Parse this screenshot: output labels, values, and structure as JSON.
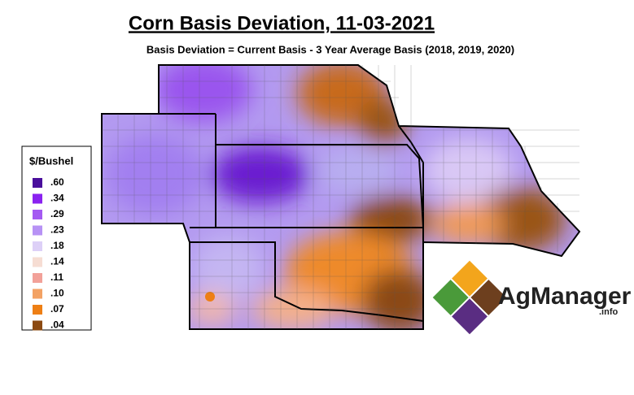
{
  "header": {
    "title": "Corn Basis Deviation, 11-03-2021",
    "subtitle": "Basis Deviation = Current Basis - 3 Year Average Basis (2018, 2019, 2020)"
  },
  "legend": {
    "title": "$/Bushel",
    "items": [
      {
        "label": ".60",
        "color": "#4a0f9c"
      },
      {
        "label": ".34",
        "color": "#8a22f0"
      },
      {
        "label": ".29",
        "color": "#a45af2"
      },
      {
        "label": ".23",
        "color": "#b792f5"
      },
      {
        "label": ".18",
        "color": "#ddd0f7"
      },
      {
        "label": ".14",
        "color": "#f6ddd3"
      },
      {
        "label": ".11",
        "color": "#f2a199"
      },
      {
        "label": ".10",
        "color": "#f3a264"
      },
      {
        "label": ".07",
        "color": "#ee7f14"
      },
      {
        "label": ".04",
        "color": "#8b4a12"
      }
    ]
  },
  "logo": {
    "name": "AgManager",
    "suffix": ".info"
  }
}
